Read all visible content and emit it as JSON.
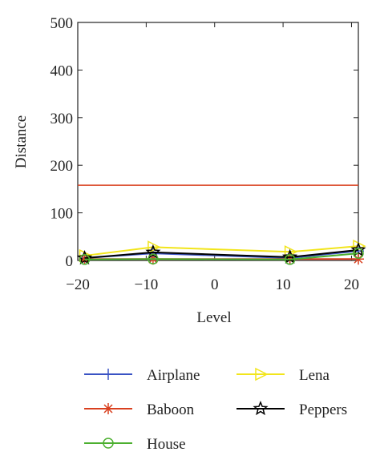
{
  "chart_data": {
    "type": "line",
    "x_label": "Level",
    "y_label": "Distance",
    "x": [
      -19,
      -9,
      11,
      21
    ],
    "xlim": [
      -20,
      21
    ],
    "xticks": [
      {
        "value": -20,
        "label": "−20"
      },
      {
        "value": -10,
        "label": "−10"
      },
      0,
      10,
      20
    ],
    "ylim": [
      0,
      500
    ],
    "yticks": [
      0,
      100,
      200,
      300,
      400,
      500
    ],
    "hline": {
      "value": 158,
      "color": "#d9401f"
    },
    "series": [
      {
        "name": "Airplane",
        "color": "#3a53c4",
        "marker": "plus",
        "values": [
          5,
          15,
          5,
          20
        ]
      },
      {
        "name": "Lena",
        "color": "#f2e51b",
        "marker": "triangle-right",
        "values": [
          10,
          28,
          18,
          30
        ]
      },
      {
        "name": "Baboon",
        "color": "#d9401f",
        "marker": "asterisk",
        "values": [
          3,
          3,
          3,
          3
        ]
      },
      {
        "name": "Peppers",
        "color": "#000000",
        "marker": "star",
        "values": [
          5,
          17,
          7,
          22
        ]
      },
      {
        "name": "House",
        "color": "#4caf2f",
        "marker": "circle",
        "values": [
          2,
          3,
          2,
          15
        ]
      }
    ]
  }
}
